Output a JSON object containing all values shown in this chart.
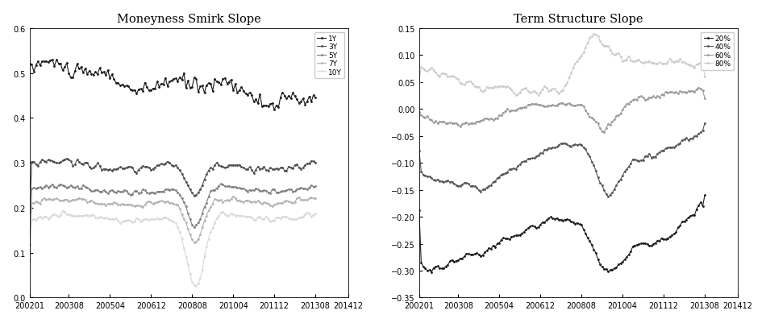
{
  "title1": "Moneyness Smirk Slope",
  "title2": "Term Structure Slope",
  "smirk_labels": [
    "1Y",
    "3Y",
    "5Y",
    "7Y",
    "10Y"
  ],
  "smirk_colors": [
    "#1a1a1a",
    "#4d4d4d",
    "#808080",
    "#b3b3b3",
    "#d9d9d9"
  ],
  "ts_labels": [
    "20%",
    "40%",
    "60%",
    "80%"
  ],
  "ts_colors": [
    "#1a1a1a",
    "#555555",
    "#999999",
    "#cccccc"
  ],
  "xlim1": [
    200201,
    201412
  ],
  "xlim2": [
    200201,
    201412
  ],
  "ylim1": [
    0.0,
    0.6
  ],
  "ylim2": [
    -0.35,
    0.15
  ],
  "xticks": [
    200201,
    200308,
    200504,
    200612,
    200808,
    201004,
    201112,
    201308,
    201412
  ],
  "smirk_yticks": [
    0,
    0.1,
    0.2,
    0.3,
    0.4,
    0.5,
    0.6
  ],
  "ts_yticks": [
    -0.35,
    -0.3,
    -0.25,
    -0.2,
    -0.15,
    -0.1,
    -0.05,
    0,
    0.05,
    0.1,
    0.15
  ],
  "background": "#ffffff"
}
